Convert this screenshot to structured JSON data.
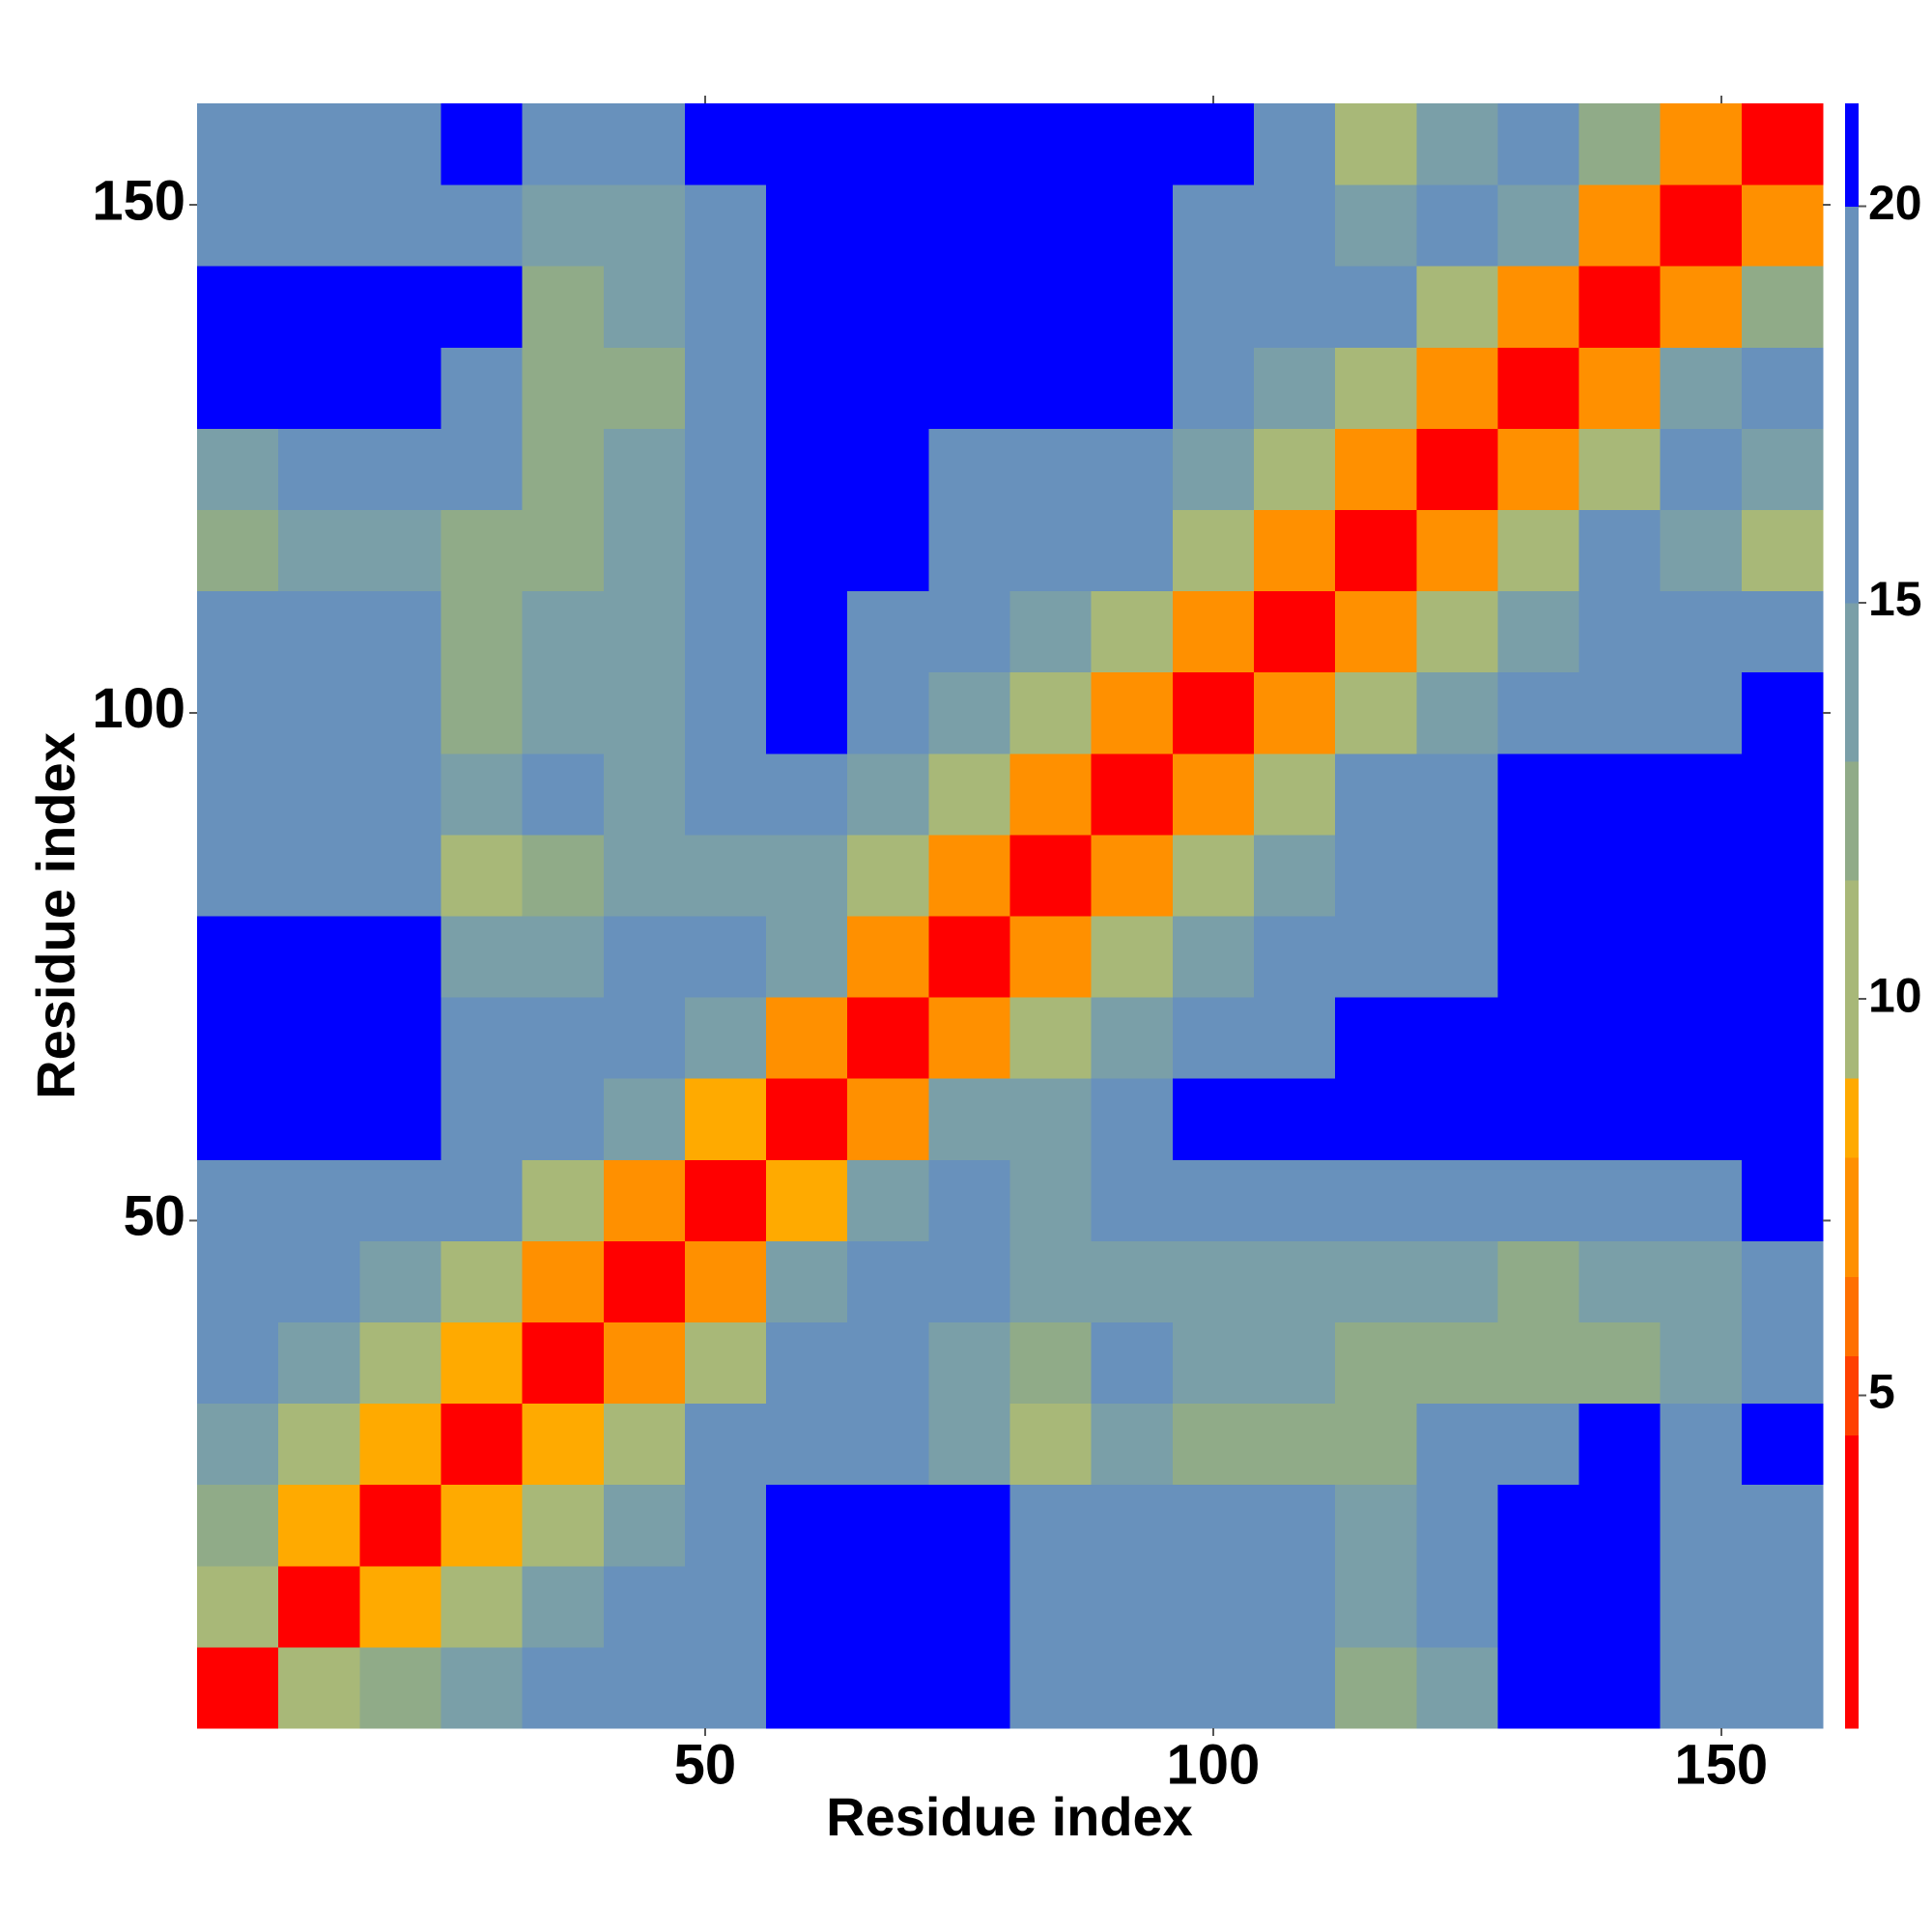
{
  "chart_data": {
    "type": "heatmap",
    "x_label": "Residue index",
    "y_label": "Residue index",
    "x_bins": [
      0,
      8,
      16,
      24,
      32,
      40,
      48,
      56,
      64,
      72,
      80,
      88,
      96,
      104,
      112,
      120,
      128,
      136,
      144,
      152,
      160
    ],
    "y_bins": [
      0,
      8,
      16,
      24,
      32,
      40,
      48,
      56,
      64,
      72,
      80,
      88,
      96,
      104,
      112,
      120,
      128,
      136,
      144,
      152,
      160
    ],
    "xlim": [
      0,
      160
    ],
    "ylim": [
      0,
      160
    ],
    "xticks": [
      50,
      100,
      150
    ],
    "yticks": [
      50,
      100,
      150
    ],
    "clim": [
      0.8,
      21.3
    ],
    "cticks": [
      5,
      10,
      15,
      20
    ],
    "colorscale": [
      {
        "value": 0.8,
        "color": "#ff0000"
      },
      {
        "value": 4.5,
        "color": "#ff4000"
      },
      {
        "value": 5.5,
        "color": "#ff7000"
      },
      {
        "value": 6.5,
        "color": "#ff9000"
      },
      {
        "value": 8,
        "color": "#ffaa00"
      },
      {
        "value": 9,
        "color": "#a8b878"
      },
      {
        "value": 11.5,
        "color": "#90ab88"
      },
      {
        "value": 13,
        "color": "#7a9fa8"
      },
      {
        "value": 15,
        "color": "#6891bc"
      },
      {
        "value": 20,
        "color": "#0000ff"
      }
    ],
    "values": [
      [
        4,
        9,
        12,
        14,
        15,
        17,
        18,
        21,
        21,
        20,
        17,
        17,
        16,
        15,
        12,
        14,
        21,
        21,
        17,
        15
      ],
      [
        9,
        4,
        8,
        11,
        13,
        16,
        18,
        21,
        21,
        21,
        16,
        16,
        17,
        15,
        13,
        15,
        20,
        21,
        18,
        17
      ],
      [
        12,
        8,
        4,
        8,
        11,
        14,
        17,
        21,
        21,
        21,
        16,
        17,
        16,
        15,
        14,
        16,
        20,
        21,
        19,
        18
      ],
      [
        14,
        11,
        8,
        4,
        8,
        11,
        15,
        19,
        18,
        14,
        10,
        14,
        12,
        12,
        12,
        15,
        18,
        20,
        19,
        20
      ],
      [
        15,
        13,
        11,
        8,
        4,
        7,
        10,
        16,
        17,
        14,
        12,
        16,
        14,
        13,
        12,
        12,
        12,
        12,
        13,
        17
      ],
      [
        17,
        16,
        14,
        11,
        7,
        4,
        7,
        13,
        16,
        15,
        13,
        14,
        14,
        13,
        13,
        13,
        12,
        13,
        14,
        17
      ],
      [
        18,
        18,
        17,
        15,
        10,
        7,
        4,
        8,
        13,
        15,
        14,
        15,
        18,
        16,
        15,
        17,
        17,
        18,
        18,
        20
      ],
      [
        21,
        21,
        21,
        19,
        16,
        13,
        8,
        4,
        7,
        13,
        13,
        16,
        20,
        21,
        21,
        21,
        21,
        21,
        21,
        21
      ],
      [
        21,
        21,
        21,
        18,
        17,
        16,
        13,
        7,
        4,
        7,
        11,
        13,
        16,
        19,
        20,
        21,
        21,
        21,
        21,
        21
      ],
      [
        20,
        21,
        21,
        14,
        14,
        15,
        15,
        13,
        7,
        4,
        7,
        11,
        13,
        16,
        18,
        18,
        21,
        21,
        21,
        21
      ],
      [
        17,
        16,
        16,
        10,
        12,
        13,
        14,
        13,
        11,
        7,
        4,
        7,
        10,
        14,
        17,
        18,
        21,
        21,
        21,
        21
      ],
      [
        17,
        16,
        17,
        14,
        16,
        14,
        15,
        16,
        13,
        11,
        7,
        4,
        7,
        11,
        15,
        19,
        21,
        21,
        21,
        21
      ],
      [
        16,
        17,
        16,
        12,
        14,
        14,
        18,
        20,
        16,
        13,
        10,
        7,
        4,
        7,
        11,
        14,
        16,
        18,
        19,
        20
      ],
      [
        15,
        15,
        15,
        12,
        13,
        13,
        16,
        21,
        19,
        16,
        14,
        11,
        7,
        4,
        7,
        10,
        13,
        15,
        15,
        17
      ],
      [
        12,
        13,
        14,
        12,
        12,
        13,
        15,
        21,
        20,
        18,
        17,
        15,
        11,
        7,
        4,
        7,
        11,
        15,
        14,
        9
      ],
      [
        14,
        15,
        16,
        15,
        12,
        13,
        17,
        21,
        21,
        18,
        18,
        19,
        14,
        10,
        7,
        4,
        7,
        11,
        16,
        14
      ],
      [
        21,
        20,
        20,
        18,
        12,
        12,
        17,
        21,
        21,
        21,
        21,
        21,
        16,
        13,
        11,
        7,
        4,
        7,
        13,
        18
      ],
      [
        21,
        21,
        21,
        20,
        12,
        13,
        18,
        21,
        21,
        21,
        21,
        21,
        18,
        15,
        15,
        11,
        7,
        4,
        7,
        12
      ],
      [
        17,
        18,
        19,
        19,
        13,
        14,
        18,
        21,
        21,
        21,
        21,
        21,
        19,
        15,
        14,
        16,
        13,
        7,
        4,
        7
      ],
      [
        15,
        17,
        18,
        20,
        17,
        17,
        20,
        21,
        21,
        21,
        21,
        21,
        20,
        17,
        9,
        14,
        18,
        12,
        7,
        4
      ]
    ]
  }
}
